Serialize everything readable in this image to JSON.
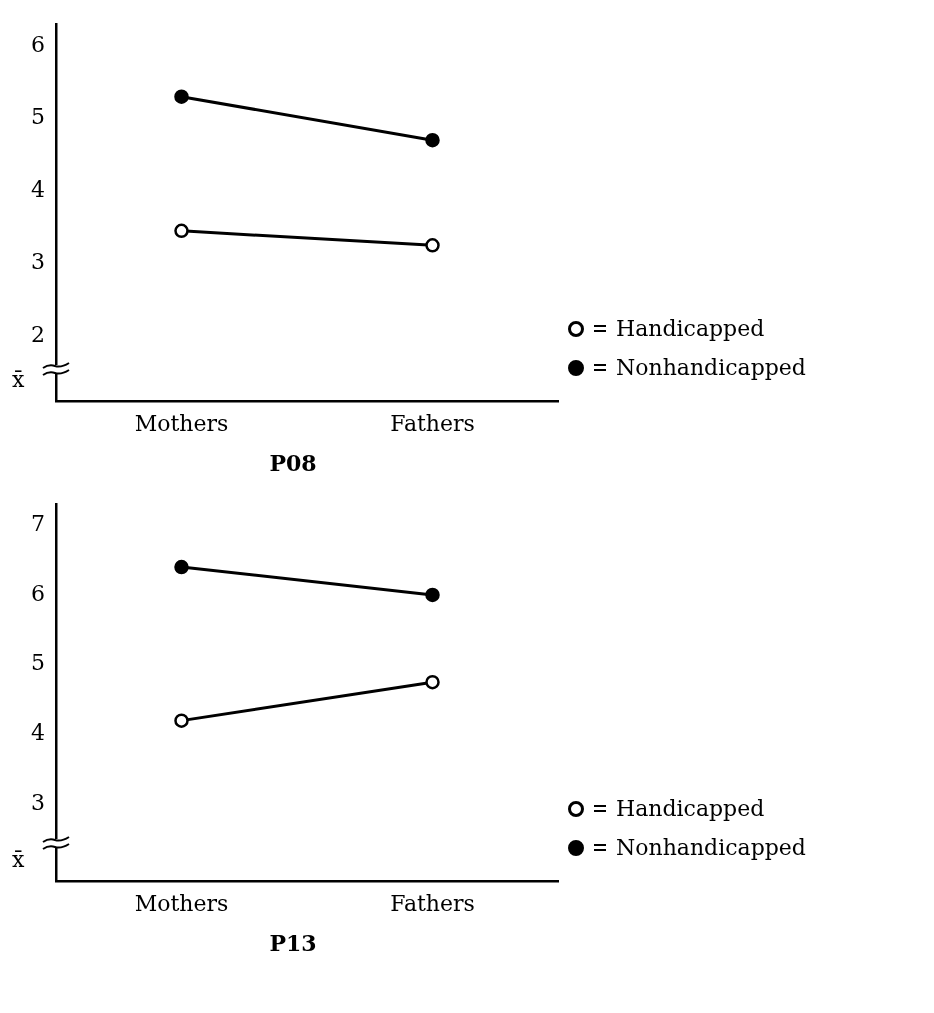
{
  "chart_data": [
    {
      "type": "line",
      "title": "P08",
      "ylabel": "x̄",
      "categories": [
        "Mothers",
        "Fathers"
      ],
      "series": [
        {
          "name": "Handicapped",
          "color": "#000000",
          "values": [
            3.45,
            3.25
          ]
        },
        {
          "name": "Nonhandicapped",
          "color": "#000000",
          "values": [
            5.3,
            4.7
          ]
        }
      ],
      "ylim": [
        1.1,
        6.3
      ],
      "yticks": [
        2,
        3,
        4,
        5,
        6
      ],
      "grid": false,
      "legend": "right",
      "marker": "circle",
      "line_style": "solid"
    },
    {
      "type": "line",
      "title": "P13",
      "ylabel": "x̄",
      "categories": [
        "Mothers",
        "Fathers"
      ],
      "series": [
        {
          "name": "Handicapped",
          "color": "#000000",
          "values": [
            4.2,
            4.75
          ]
        },
        {
          "name": "Nonhandicapped",
          "color": "#000000",
          "values": [
            6.4,
            6.0
          ]
        }
      ],
      "ylim": [
        1.9,
        7.3
      ],
      "yticks": [
        3,
        4,
        5,
        6,
        7
      ],
      "grid": false,
      "legend": "right",
      "marker": "circle",
      "line_style": "solid"
    }
  ]
}
